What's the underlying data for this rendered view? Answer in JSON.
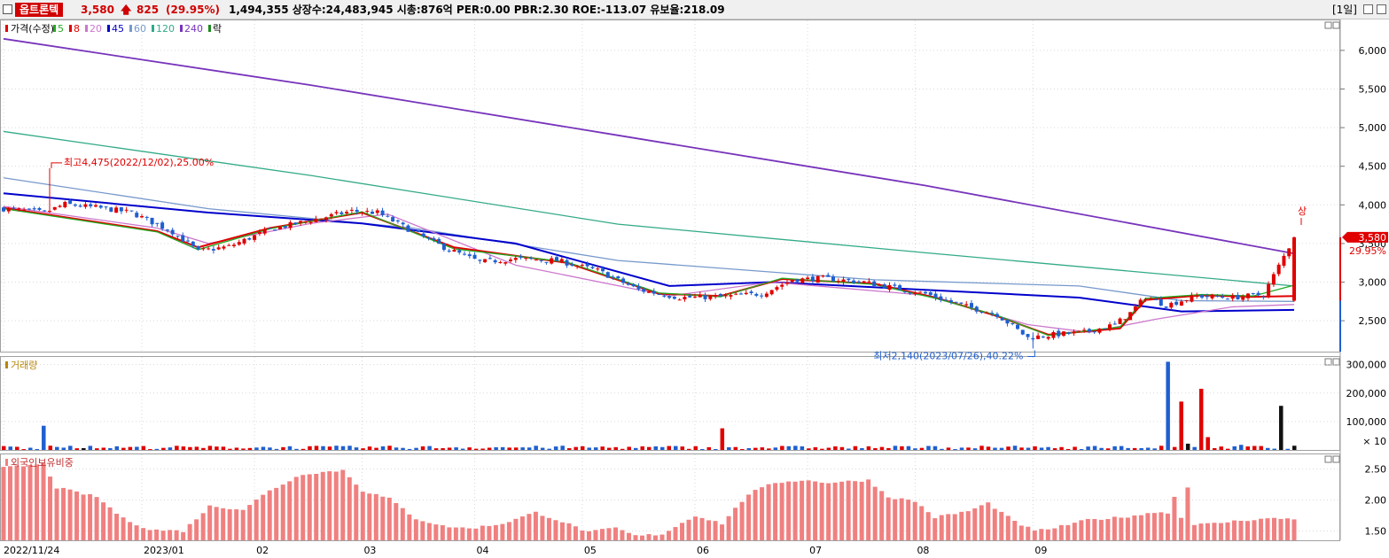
{
  "header": {
    "stock_name": "옵트론텍",
    "price": "3,580",
    "change": "825",
    "change_pct": "(29.95%)",
    "info": "1,494,355  상장수:24,483,945  시총:876억  PER:0.00  PBR:2.30  ROE:-113.07  유보율:218.09",
    "period": "[1일]"
  },
  "legend": {
    "price_label": "가격(수정)",
    "ma": [
      {
        "label": "5",
        "color": "#22aa22"
      },
      {
        "label": "8",
        "color": "#e00000"
      },
      {
        "label": "20",
        "color": "#cc77cc"
      },
      {
        "label": "45",
        "color": "#0000cc"
      },
      {
        "label": "60",
        "color": "#7799cc"
      },
      {
        "label": "120",
        "color": "#33aa88"
      },
      {
        "label": "240",
        "color": "#7733bb"
      }
    ],
    "extra_label": "락",
    "volume_label": "거래량",
    "foreign_label": "외국인보유비중"
  },
  "annotations": {
    "high": "최고4,475(2022/12/02),25.00%",
    "low": "최저2,140(2023/07/26),40.22%",
    "upper_limit": "상",
    "current_price": "3,580",
    "current_pct": "29.95%",
    "volume_unit": "× 10"
  },
  "colors": {
    "up": "#e00000",
    "down": "#1f5fd0",
    "current": "#111111",
    "foreign": "#f08080",
    "grid": "#d9d9d9"
  },
  "chart_data": [
    {
      "type": "candlestick",
      "title": "가격(수정)",
      "ylim": [
        2100,
        6400
      ],
      "yticks": [
        2500,
        3000,
        3500,
        4000,
        4500,
        5000,
        5500,
        6000
      ],
      "ytick_labels": [
        "2,500",
        "3,000",
        "3,500",
        "4,000",
        "4,500",
        "5,000",
        "5,500",
        "6,000"
      ],
      "x_labels": [
        {
          "label": "2022/11/24",
          "date": "2022-11-24"
        },
        {
          "label": "2023/01",
          "date": "2023-01-02"
        },
        {
          "label": "02",
          "date": "2023-02-01"
        },
        {
          "label": "03",
          "date": "2023-03-02"
        },
        {
          "label": "04",
          "date": "2023-04-03"
        },
        {
          "label": "05",
          "date": "2023-05-02"
        },
        {
          "label": "06",
          "date": "2023-06-01"
        },
        {
          "label": "07",
          "date": "2023-07-03"
        },
        {
          "label": "08",
          "date": "2023-08-01"
        },
        {
          "label": "09",
          "date": "2023-09-01"
        }
      ],
      "trading_days": 195,
      "close_path": [
        [
          0,
          3950
        ],
        [
          8,
          3900
        ],
        [
          12,
          4010
        ],
        [
          20,
          3950
        ],
        [
          25,
          3900
        ],
        [
          33,
          3650
        ],
        [
          38,
          3400
        ],
        [
          44,
          3460
        ],
        [
          52,
          3680
        ],
        [
          60,
          3800
        ],
        [
          68,
          3920
        ],
        [
          73,
          3900
        ],
        [
          80,
          3650
        ],
        [
          86,
          3450
        ],
        [
          93,
          3260
        ],
        [
          100,
          3300
        ],
        [
          108,
          3280
        ],
        [
          116,
          3150
        ],
        [
          124,
          2900
        ],
        [
          132,
          2800
        ],
        [
          140,
          2810
        ],
        [
          148,
          2850
        ],
        [
          154,
          3030
        ],
        [
          160,
          3050
        ],
        [
          168,
          3000
        ],
        [
          176,
          2900
        ],
        [
          180,
          2850
        ],
        [
          186,
          2720
        ],
        [
          194,
          2580
        ],
        [
          200,
          2280
        ],
        [
          205,
          2320
        ],
        [
          211,
          2350
        ],
        [
          217,
          2450
        ],
        [
          220,
          2600
        ],
        [
          223,
          2810
        ],
        [
          227,
          2700
        ],
        [
          233,
          2820
        ],
        [
          240,
          2800
        ],
        [
          246,
          2840
        ],
        [
          252,
          3580
        ]
      ],
      "ma": [
        {
          "name": "240",
          "values": [
            [
              0,
              6150
            ],
            [
              60,
              5550
            ],
            [
              120,
              4900
            ],
            [
              180,
              4250
            ],
            [
              252,
              3370
            ]
          ]
        },
        {
          "name": "120",
          "values": [
            [
              0,
              4950
            ],
            [
              60,
              4380
            ],
            [
              120,
              3750
            ],
            [
              180,
              3380
            ],
            [
              252,
              2950
            ]
          ]
        },
        {
          "name": "60",
          "values": [
            [
              0,
              4350
            ],
            [
              40,
              3950
            ],
            [
              80,
              3700
            ],
            [
              120,
              3280
            ],
            [
              170,
              3030
            ],
            [
              210,
              2950
            ],
            [
              230,
              2760
            ],
            [
              252,
              2750
            ]
          ]
        },
        {
          "name": "45",
          "values": [
            [
              0,
              4150
            ],
            [
              40,
              3900
            ],
            [
              70,
              3760
            ],
            [
              100,
              3500
            ],
            [
              130,
              2950
            ],
            [
              150,
              3000
            ],
            [
              180,
              2900
            ],
            [
              210,
              2800
            ],
            [
              230,
              2620
            ],
            [
              252,
              2640
            ]
          ]
        },
        {
          "name": "20",
          "values": [
            [
              0,
              3980
            ],
            [
              30,
              3700
            ],
            [
              40,
              3500
            ],
            [
              60,
              3760
            ],
            [
              75,
              3880
            ],
            [
              100,
              3220
            ],
            [
              130,
              2820
            ],
            [
              150,
              3000
            ],
            [
              180,
              2830
            ],
            [
              200,
              2450
            ],
            [
              212,
              2350
            ],
            [
              225,
              2520
            ],
            [
              240,
              2680
            ],
            [
              252,
              2710
            ]
          ]
        },
        {
          "name": "8",
          "values": [
            [
              0,
              3960
            ],
            [
              30,
              3660
            ],
            [
              38,
              3450
            ],
            [
              52,
              3700
            ],
            [
              70,
              3900
            ],
            [
              88,
              3450
            ],
            [
              110,
              3250
            ],
            [
              128,
              2850
            ],
            [
              140,
              2820
            ],
            [
              152,
              3040
            ],
            [
              170,
              2980
            ],
            [
              182,
              2800
            ],
            [
              194,
              2560
            ],
            [
              204,
              2320
            ],
            [
              218,
              2400
            ],
            [
              223,
              2770
            ],
            [
              234,
              2830
            ],
            [
              244,
              2810
            ],
            [
              252,
              2820
            ]
          ]
        },
        {
          "name": "5",
          "values": [
            [
              0,
              3950
            ],
            [
              30,
              3650
            ],
            [
              38,
              3420
            ],
            [
              52,
              3690
            ],
            [
              70,
              3910
            ],
            [
              88,
              3430
            ],
            [
              110,
              3260
            ],
            [
              128,
              2860
            ],
            [
              140,
              2810
            ],
            [
              152,
              3050
            ],
            [
              170,
              2970
            ],
            [
              182,
              2790
            ],
            [
              194,
              2570
            ],
            [
              204,
              2310
            ],
            [
              218,
              2420
            ],
            [
              223,
              2790
            ],
            [
              234,
              2840
            ],
            [
              244,
              2820
            ],
            [
              252,
              2960
            ]
          ]
        }
      ]
    },
    {
      "type": "bar",
      "title": "거래량",
      "ylim": [
        0,
        330000
      ],
      "yticks": [
        100000,
        200000,
        300000
      ],
      "ytick_labels": [
        "100,000",
        "200,000",
        "300,000"
      ],
      "spikes": [
        [
          6,
          85000
        ],
        [
          108,
          76000
        ],
        [
          175,
          310000
        ],
        [
          177,
          170000
        ],
        [
          178,
          22000
        ],
        [
          180,
          215000
        ],
        [
          181,
          45000
        ],
        [
          183,
          12000
        ],
        [
          186,
          18000
        ],
        [
          188,
          14000
        ],
        [
          192,
          155000
        ]
      ]
    },
    {
      "type": "bar",
      "title": "외국인보유비중",
      "ylim": [
        1.35,
        2.75
      ],
      "yticks": [
        1.5,
        2.0,
        2.5
      ],
      "ytick_labels": [
        "1.50",
        "2.00",
        "2.50"
      ],
      "path": [
        [
          0,
          2.52
        ],
        [
          6,
          2.58
        ],
        [
          8,
          2.2
        ],
        [
          14,
          2.05
        ],
        [
          18,
          1.7
        ],
        [
          22,
          1.52
        ],
        [
          27,
          1.5
        ],
        [
          31,
          1.9
        ],
        [
          36,
          1.85
        ],
        [
          40,
          2.15
        ],
        [
          45,
          2.42
        ],
        [
          51,
          2.48
        ],
        [
          54,
          2.15
        ],
        [
          58,
          2.02
        ],
        [
          62,
          1.7
        ],
        [
          66,
          1.58
        ],
        [
          70,
          1.54
        ],
        [
          75,
          1.62
        ],
        [
          80,
          1.8
        ],
        [
          84,
          1.65
        ],
        [
          88,
          1.48
        ],
        [
          92,
          1.55
        ],
        [
          95,
          1.42
        ],
        [
          99,
          1.45
        ],
        [
          104,
          1.75
        ],
        [
          108,
          1.62
        ],
        [
          112,
          2.1
        ],
        [
          116,
          2.28
        ],
        [
          120,
          2.32
        ],
        [
          124,
          2.28
        ],
        [
          130,
          2.32
        ],
        [
          133,
          2.05
        ],
        [
          137,
          1.98
        ],
        [
          140,
          1.72
        ],
        [
          145,
          1.82
        ],
        [
          148,
          1.95
        ],
        [
          152,
          1.65
        ],
        [
          155,
          1.5
        ],
        [
          158,
          1.55
        ],
        [
          163,
          1.68
        ],
        [
          168,
          1.72
        ],
        [
          172,
          1.78
        ],
        [
          174,
          1.82
        ],
        [
          175,
          1.78
        ],
        [
          176,
          2.05
        ],
        [
          177,
          1.72
        ],
        [
          178,
          2.22
        ],
        [
          179,
          1.6
        ],
        [
          182,
          1.62
        ],
        [
          186,
          1.67
        ],
        [
          190,
          1.7
        ],
        [
          194,
          1.7
        ]
      ]
    }
  ]
}
